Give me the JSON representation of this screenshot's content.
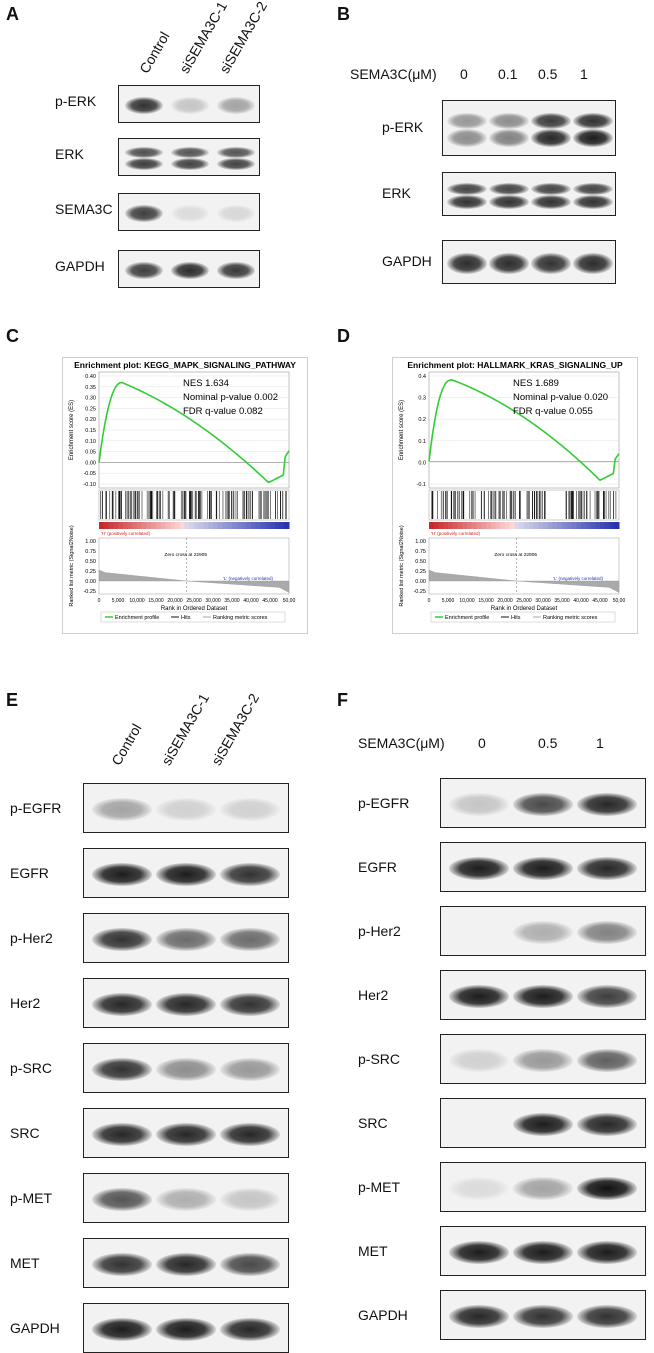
{
  "panels": {
    "A": "A",
    "B": "B",
    "C": "C",
    "D": "D",
    "E": "E",
    "F": "F"
  },
  "panel_A": {
    "lanes": [
      "Control",
      "siSEMA3C-1",
      "siSEMA3C-2"
    ],
    "rows": [
      {
        "label": "p-ERK",
        "intensity": [
          0.85,
          0.2,
          0.35
        ],
        "double": false
      },
      {
        "label": "ERK",
        "intensity": [
          0.8,
          0.78,
          0.78
        ],
        "double": true
      },
      {
        "label": "SEMA3C",
        "intensity": [
          0.8,
          0.1,
          0.12
        ],
        "double": false
      },
      {
        "label": "GAPDH",
        "intensity": [
          0.8,
          0.88,
          0.82
        ],
        "double": false
      }
    ]
  },
  "panel_B": {
    "dose_title": "SEMA3C(μM)",
    "doses": [
      "0",
      "0.1",
      "0.5",
      "1"
    ],
    "rows": [
      {
        "label": "p-ERK",
        "intensity": [
          0.45,
          0.5,
          0.9,
          0.95
        ],
        "double": true
      },
      {
        "label": "ERK",
        "intensity": [
          0.85,
          0.85,
          0.85,
          0.85
        ],
        "double": true
      },
      {
        "label": "GAPDH",
        "intensity": [
          0.88,
          0.88,
          0.85,
          0.88
        ],
        "double": false
      }
    ]
  },
  "panel_C": {
    "title": "Enrichment plot: KEGG_MAPK_SIGNALING_PATHWAY",
    "nes": "NES 1.634",
    "pval": "Nominal p-value 0.002",
    "fdr": "FDR q-value 0.082",
    "es_ticks": [
      "0.40",
      "0.35",
      "0.30",
      "0.25",
      "0.20",
      "0.15",
      "0.10",
      "0.05",
      "0.00",
      "-0.05",
      "-0.10"
    ],
    "es_axis_label": "Enrichment score (ES)",
    "rank_ticks": [
      "1.00",
      "0.75",
      "0.50",
      "0.25",
      "0.00",
      "-0.25"
    ],
    "rank_axis_label": "Ranked list metric (Signal2Noise)",
    "x_ticks": [
      "0",
      "5,000",
      "10,000",
      "15,000",
      "20,000",
      "25,000",
      "30,000",
      "35,000",
      "40,000",
      "45,000",
      "50,00"
    ],
    "x_label": "Rank in Ordered Dataset",
    "pos_label": "'H' (positively correlated)",
    "neg_label": "'L' (negatively correlated)",
    "zero_cross": "Zero cross at 22905",
    "legend": [
      "Enrichment profile",
      "Hits",
      "Ranking metric scores"
    ]
  },
  "panel_D": {
    "title": "Enrichment plot: HALLMARK_KRAS_SIGNALING_UP",
    "nes": "NES 1.689",
    "pval": "Nominal p-value 0.020",
    "fdr": "FDR q-value 0.055",
    "es_ticks": [
      "0.4",
      "0.3",
      "0.2",
      "0.1",
      "0.0",
      "-0.1"
    ],
    "es_axis_label": "Enrichment score (ES)",
    "rank_ticks": [
      "1.00",
      "0.75",
      "0.50",
      "0.25",
      "0.00",
      "-0.25"
    ],
    "rank_axis_label": "Ranked list metric (Signal2Noise)",
    "x_ticks": [
      "0",
      "5,000",
      "10,000",
      "15,000",
      "20,000",
      "25,000",
      "30,000",
      "35,000",
      "40,000",
      "45,000",
      "50,00"
    ],
    "x_label": "Rank in Ordered Dataset",
    "pos_label": "'H' (positively correlated)",
    "neg_label": "'L' (negatively correlated)",
    "zero_cross": "Zero cross at 22905",
    "legend": [
      "Enrichment profile",
      "Hits",
      "Ranking metric scores"
    ]
  },
  "panel_E": {
    "lanes": [
      "Control",
      "siSEMA3C-1",
      "siSEMA3C-2"
    ],
    "rows": [
      {
        "label": "p-EGFR",
        "intensity": [
          0.35,
          0.15,
          0.15
        ]
      },
      {
        "label": "EGFR",
        "intensity": [
          0.95,
          0.95,
          0.85
        ]
      },
      {
        "label": "p-Her2",
        "intensity": [
          0.85,
          0.6,
          0.6
        ]
      },
      {
        "label": "Her2",
        "intensity": [
          0.9,
          0.9,
          0.85
        ]
      },
      {
        "label": "p-SRC",
        "intensity": [
          0.85,
          0.45,
          0.4
        ]
      },
      {
        "label": "SRC",
        "intensity": [
          0.9,
          0.9,
          0.9
        ]
      },
      {
        "label": "p-MET",
        "intensity": [
          0.7,
          0.3,
          0.2
        ]
      },
      {
        "label": "MET",
        "intensity": [
          0.85,
          0.9,
          0.75
        ]
      },
      {
        "label": "GAPDH",
        "intensity": [
          0.95,
          0.95,
          0.9
        ]
      }
    ]
  },
  "panel_F": {
    "dose_title": "SEMA3C(μM)",
    "doses": [
      "0",
      "0.5",
      "1"
    ],
    "rows": [
      {
        "label": "p-EGFR",
        "intensity": [
          0.2,
          0.75,
          0.9
        ]
      },
      {
        "label": "EGFR",
        "intensity": [
          0.95,
          0.95,
          0.9
        ]
      },
      {
        "label": "p-Her2",
        "intensity": [
          0.0,
          0.3,
          0.5
        ]
      },
      {
        "label": "Her2",
        "intensity": [
          0.95,
          0.95,
          0.8
        ]
      },
      {
        "label": "p-SRC",
        "intensity": [
          0.15,
          0.4,
          0.65
        ]
      },
      {
        "label": "SRC",
        "intensity": [
          0.0,
          0.95,
          0.9
        ]
      },
      {
        "label": "p-MET",
        "intensity": [
          0.1,
          0.35,
          1.0
        ]
      },
      {
        "label": "MET",
        "intensity": [
          0.95,
          0.95,
          0.95
        ]
      },
      {
        "label": "GAPDH",
        "intensity": [
          0.9,
          0.85,
          0.85
        ]
      }
    ]
  },
  "colors": {
    "curve": "#33cc33",
    "band": "#111111",
    "pos": "#cc2222",
    "neg": "#2233aa"
  }
}
